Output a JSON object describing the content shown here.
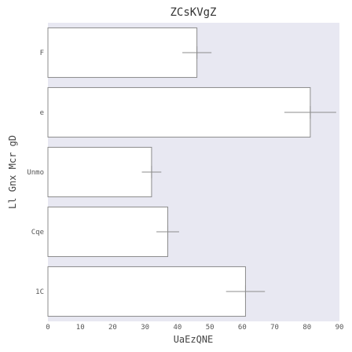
{
  "chart_data": {
    "type": "bar",
    "orientation": "horizontal",
    "title": "ZCsKVgZ",
    "xlabel": "UaEzQNE",
    "ylabel": "Ll Gnx Mcr gD",
    "categories": [
      "F",
      "e",
      "Unmo",
      "Cqe",
      "1C"
    ],
    "values": [
      46,
      81,
      32,
      37,
      61
    ],
    "errors": [
      4.5,
      8,
      3,
      3.5,
      6
    ],
    "xlim": [
      0,
      90
    ],
    "xticks": [
      0,
      10,
      20,
      30,
      40,
      50,
      60,
      70,
      80,
      90
    ],
    "grid": false,
    "colors": {
      "plot_background": "#e8e8f2",
      "bar_fill": "#ffffff",
      "bar_edge": "#8c8c8c",
      "error_bar": "#8c8c8c"
    }
  }
}
